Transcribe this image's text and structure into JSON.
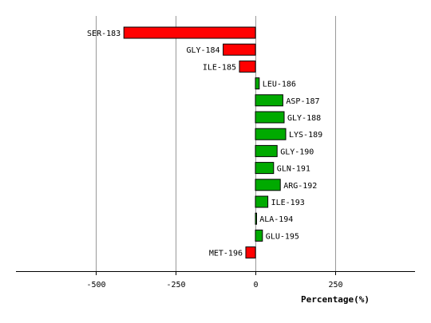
{
  "chart_data": {
    "type": "bar",
    "orientation": "horizontal",
    "categories": [
      "SER-183",
      "GLY-184",
      "ILE-185",
      "LEU-186",
      "ASP-187",
      "GLY-188",
      "LYS-189",
      "GLY-190",
      "GLN-191",
      "ARG-192",
      "ILE-193",
      "ALA-194",
      "GLU-195",
      "MET-196"
    ],
    "values": [
      -412,
      -101,
      -50,
      12,
      86,
      90,
      95,
      68,
      57,
      78,
      39,
      3,
      22,
      -30
    ],
    "xlabel": "Percentage(%)",
    "ylabel": "",
    "xlim": [
      -750,
      500
    ],
    "xticks": [
      -500,
      -250,
      0,
      250
    ],
    "xtick_labels": [
      "-500",
      "-250",
      "0",
      "250"
    ],
    "grid": true,
    "colors": {
      "negative": "#ff0000",
      "positive": "#00aa00",
      "bar_outline": "#000000",
      "grid": "#999999",
      "axis": "#000000"
    }
  }
}
